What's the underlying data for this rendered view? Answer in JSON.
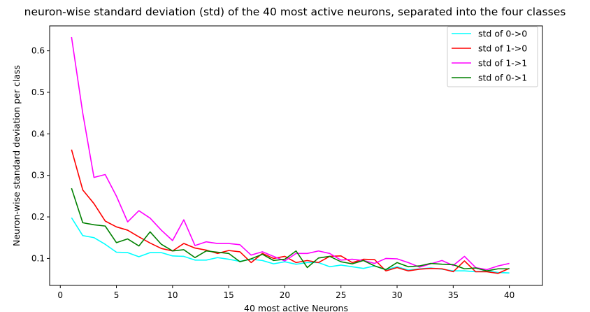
{
  "chart_data": {
    "type": "line",
    "title": "neuron-wise standard deviation (std) of the 40 most active neurons, separated into the four classes",
    "xlabel": "40 most active Neurons",
    "ylabel": "Neuron-wise standard deviation per class",
    "xlim": [
      -0.95,
      42.95
    ],
    "ylim": [
      0.035,
      0.66
    ],
    "xticks": [
      0,
      5,
      10,
      15,
      20,
      25,
      30,
      35,
      40
    ],
    "yticks": [
      0.1,
      0.2,
      0.3,
      0.4,
      0.5,
      0.6
    ],
    "xtick_labels": [
      "0",
      "5",
      "10",
      "15",
      "20",
      "25",
      "30",
      "35",
      "40"
    ],
    "ytick_labels": [
      "0.1",
      "0.2",
      "0.3",
      "0.4",
      "0.5",
      "0.6"
    ],
    "grid": false,
    "legend_position": "top-right",
    "x": [
      1,
      2,
      3,
      4,
      5,
      6,
      7,
      8,
      9,
      10,
      11,
      12,
      13,
      14,
      15,
      16,
      17,
      18,
      19,
      20,
      21,
      22,
      23,
      24,
      25,
      26,
      27,
      28,
      29,
      30,
      31,
      32,
      33,
      34,
      35,
      36,
      37,
      38,
      39,
      40
    ],
    "series": [
      {
        "name": "std of 0->0",
        "color": "#00ffff",
        "values": [
          0.198,
          0.155,
          0.15,
          0.134,
          0.115,
          0.114,
          0.104,
          0.114,
          0.114,
          0.106,
          0.105,
          0.096,
          0.096,
          0.102,
          0.098,
          0.093,
          0.098,
          0.095,
          0.087,
          0.092,
          0.086,
          0.09,
          0.09,
          0.08,
          0.084,
          0.08,
          0.076,
          0.082,
          0.073,
          0.08,
          0.072,
          0.075,
          0.077,
          0.074,
          0.07,
          0.07,
          0.068,
          0.07,
          0.066,
          0.065
        ]
      },
      {
        "name": "std of 1->0",
        "color": "#ff0000",
        "values": [
          0.362,
          0.265,
          0.232,
          0.19,
          0.176,
          0.168,
          0.152,
          0.137,
          0.124,
          0.118,
          0.136,
          0.125,
          0.12,
          0.112,
          0.119,
          0.116,
          0.09,
          0.112,
          0.1,
          0.105,
          0.09,
          0.095,
          0.09,
          0.105,
          0.106,
          0.09,
          0.098,
          0.097,
          0.07,
          0.078,
          0.07,
          0.074,
          0.076,
          0.075,
          0.068,
          0.094,
          0.068,
          0.068,
          0.064,
          0.076
        ]
      },
      {
        "name": "std of 1->1",
        "color": "#ff00ff",
        "values": [
          0.633,
          0.45,
          0.295,
          0.302,
          0.25,
          0.188,
          0.215,
          0.197,
          0.168,
          0.143,
          0.193,
          0.131,
          0.14,
          0.136,
          0.136,
          0.133,
          0.108,
          0.116,
          0.105,
          0.094,
          0.112,
          0.112,
          0.118,
          0.112,
          0.096,
          0.098,
          0.095,
          0.088,
          0.1,
          0.099,
          0.09,
          0.079,
          0.087,
          0.095,
          0.083,
          0.105,
          0.078,
          0.073,
          0.082,
          0.088
        ]
      },
      {
        "name": "std of 0->1",
        "color": "#008000",
        "values": [
          0.269,
          0.186,
          0.181,
          0.178,
          0.138,
          0.147,
          0.13,
          0.164,
          0.134,
          0.118,
          0.121,
          0.102,
          0.118,
          0.115,
          0.112,
          0.092,
          0.099,
          0.11,
          0.095,
          0.098,
          0.118,
          0.078,
          0.101,
          0.105,
          0.092,
          0.087,
          0.095,
          0.082,
          0.073,
          0.09,
          0.08,
          0.082,
          0.088,
          0.086,
          0.085,
          0.075,
          0.077,
          0.07,
          0.075,
          0.075
        ]
      }
    ]
  }
}
